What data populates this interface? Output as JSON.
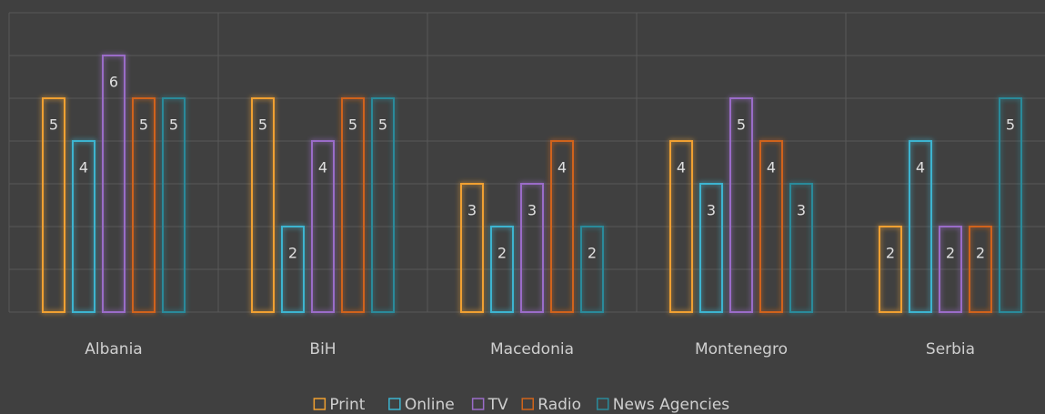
{
  "chart_data": {
    "type": "bar",
    "categories": [
      "Albania",
      "BiH",
      "Macedonia",
      "Montenegro",
      "Serbia"
    ],
    "series": [
      {
        "name": "Print",
        "color": "#f0a030",
        "values": [
          5,
          5,
          3,
          4,
          2
        ]
      },
      {
        "name": "Online",
        "color": "#3cb4d0",
        "values": [
          4,
          2,
          2,
          3,
          4
        ]
      },
      {
        "name": "TV",
        "color": "#9a6cc8",
        "values": [
          6,
          4,
          3,
          5,
          2
        ]
      },
      {
        "name": "Radio",
        "color": "#d0641a",
        "values": [
          5,
          5,
          4,
          4,
          2
        ]
      },
      {
        "name": "News Agencies",
        "color": "#2a8a9a",
        "values": [
          5,
          5,
          2,
          3,
          5
        ]
      }
    ],
    "ylim": [
      0,
      7
    ],
    "yticks": [
      0,
      1,
      2,
      3,
      4,
      5,
      6,
      7
    ],
    "grid": true,
    "legend": "bottom"
  }
}
